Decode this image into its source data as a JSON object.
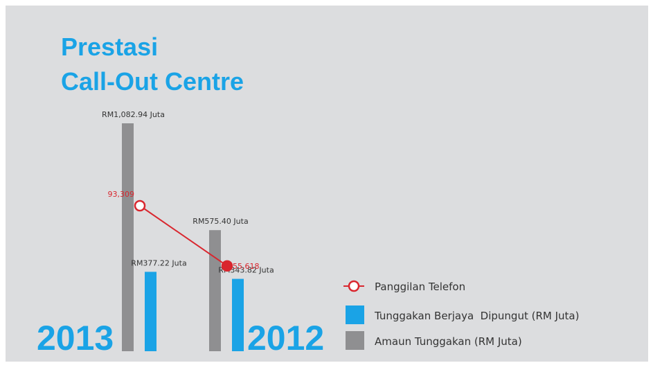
{
  "chart_data": {
    "type": "bar",
    "title": [
      "Prestasi",
      "Call-Out Centre"
    ],
    "categories": [
      "2013",
      "2012"
    ],
    "series": [
      {
        "name": "Panggilan Telefon",
        "type": "line",
        "axis": "y2",
        "color": "#d9262e",
        "values": [
          93309,
          55618
        ],
        "value_labels": [
          "93,309",
          "55,618"
        ]
      },
      {
        "name": "Tunggakan Berjaya  Dipungut (RM Juta)",
        "type": "bar",
        "color": "#1aa3e6",
        "values": [
          377.22,
          343.82
        ],
        "value_labels": [
          "RM377.22 Juta",
          "RM343.82 Juta"
        ]
      },
      {
        "name": "Amaun Tunggakan (RM Juta)",
        "type": "bar",
        "color": "#8f8f91",
        "values": [
          1082.94,
          575.4
        ],
        "value_labels": [
          "RM1,082.94 Juta",
          "RM575.40 Juta"
        ]
      }
    ]
  }
}
